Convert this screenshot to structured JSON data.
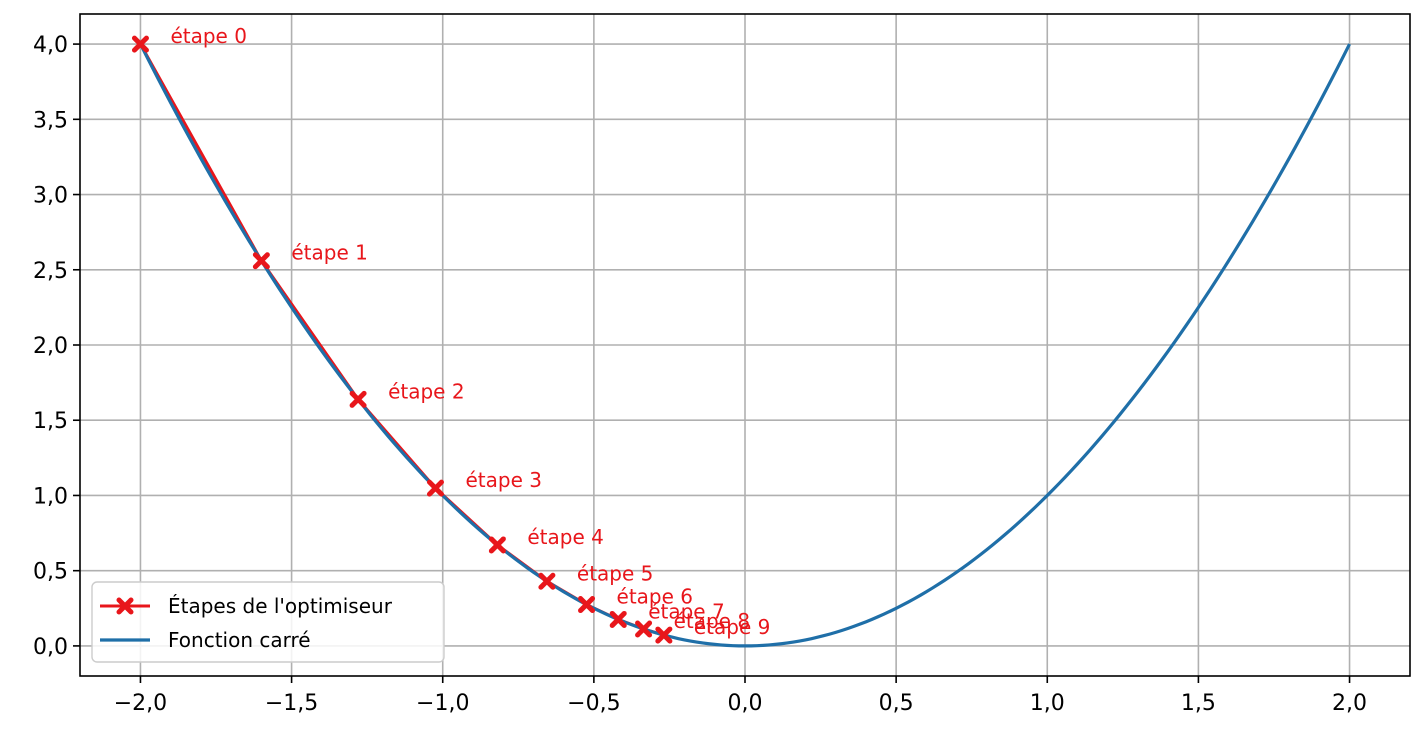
{
  "chart_data": {
    "type": "line",
    "title": "",
    "xlabel": "",
    "ylabel": "",
    "xlim": [
      -2.2,
      2.2
    ],
    "ylim": [
      -0.2,
      4.2
    ],
    "grid": true,
    "legend_position": "bottom-left",
    "x_ticks": [
      {
        "value": -2.0,
        "label": "−2,0"
      },
      {
        "value": -1.5,
        "label": "−1,5"
      },
      {
        "value": -1.0,
        "label": "−1,0"
      },
      {
        "value": -0.5,
        "label": "−0,5"
      },
      {
        "value": 0.0,
        "label": "0,0"
      },
      {
        "value": 0.5,
        "label": "0,5"
      },
      {
        "value": 1.0,
        "label": "1,0"
      },
      {
        "value": 1.5,
        "label": "1,5"
      },
      {
        "value": 2.0,
        "label": "2,0"
      }
    ],
    "y_ticks": [
      {
        "value": 0.0,
        "label": "0,0"
      },
      {
        "value": 0.5,
        "label": "0,5"
      },
      {
        "value": 1.0,
        "label": "1,0"
      },
      {
        "value": 1.5,
        "label": "1,5"
      },
      {
        "value": 2.0,
        "label": "2,0"
      },
      {
        "value": 2.5,
        "label": "2,5"
      },
      {
        "value": 3.0,
        "label": "3,0"
      },
      {
        "value": 3.5,
        "label": "3,5"
      },
      {
        "value": 4.0,
        "label": "4,0"
      }
    ],
    "series": [
      {
        "name": "Étapes de l'optimiseur",
        "color": "#e8161b",
        "marker": "X",
        "x": [
          -2.0,
          -1.6,
          -1.28,
          -1.024,
          -0.8192,
          -0.65536,
          -0.524288,
          -0.4194304,
          -0.33554432,
          -0.268435456
        ],
        "y": [
          4.0,
          2.56,
          1.6384,
          1.048576,
          0.67108864,
          0.4294967,
          0.2748779,
          0.1759219,
          0.11259,
          0.0720576
        ],
        "annotations": [
          "étape 0",
          "étape 1",
          "étape 2",
          "étape 3",
          "étape 4",
          "étape 5",
          "étape 6",
          "étape 7",
          "étape 8",
          "étape 9"
        ]
      },
      {
        "name": "Fonction carré",
        "color": "#1f6fa8",
        "function": "x^2",
        "x_range": [
          -2.0,
          2.0
        ]
      }
    ]
  }
}
